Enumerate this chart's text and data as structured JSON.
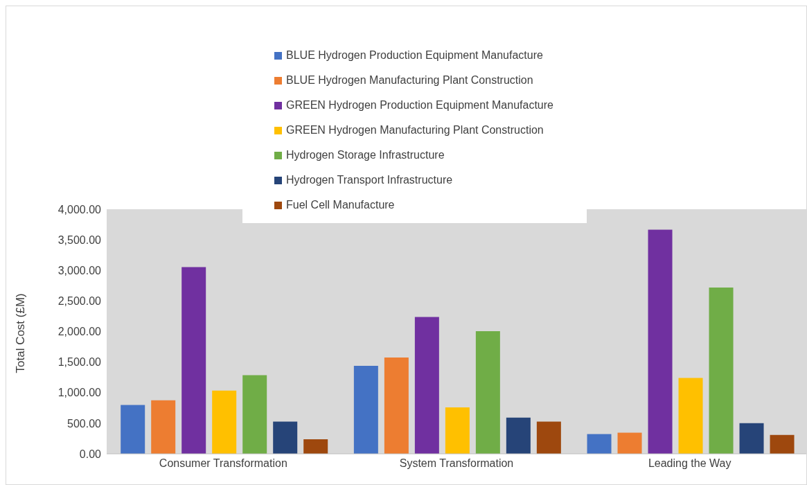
{
  "chart_data": {
    "type": "bar",
    "ylabel": "Total Cost (£M)",
    "categories": [
      "Consumer Transformation",
      "System Transformation",
      "Leading the Way"
    ],
    "series": [
      {
        "name": "BLUE Hydrogen Production Equipment Manufacture",
        "color": "#4472c4",
        "values": [
          800,
          1440,
          322
        ]
      },
      {
        "name": "BLUE Hydrogen Manufacturing Plant Construction",
        "color": "#ed7d31",
        "values": [
          875,
          1576,
          347
        ]
      },
      {
        "name": "GREEN Hydrogen Production Equipment Manufacture",
        "color": "#7030a0",
        "values": [
          3055,
          2238,
          3666
        ]
      },
      {
        "name": "GREEN Hydrogen Manufacturing Plant Construction",
        "color": "#ffc000",
        "values": [
          1035,
          759,
          1241
        ]
      },
      {
        "name": "Hydrogen Storage Infrastructure",
        "color": "#70ad47",
        "values": [
          1286,
          2006,
          2720
        ]
      },
      {
        "name": "Hydrogen Transport Infrastructure",
        "color": "#264478",
        "values": [
          527,
          592,
          502
        ]
      },
      {
        "name": "Fuel Cell Manufacture",
        "color": "#9e480e",
        "values": [
          238,
          527,
          309
        ]
      }
    ],
    "ylim": [
      0,
      4000
    ],
    "yticks": [
      {
        "value": 0,
        "label": "0.00"
      },
      {
        "value": 500,
        "label": "500.00"
      },
      {
        "value": 1000,
        "label": "1,000.00"
      },
      {
        "value": 1500,
        "label": "1,500.00"
      },
      {
        "value": 2000,
        "label": "2,000.00"
      },
      {
        "value": 2500,
        "label": "2,500.00"
      },
      {
        "value": 3000,
        "label": "3,000.00"
      },
      {
        "value": 3500,
        "label": "3,500.00"
      },
      {
        "value": 4000,
        "label": "4,000.00"
      }
    ],
    "grid": false,
    "legend": "top"
  }
}
